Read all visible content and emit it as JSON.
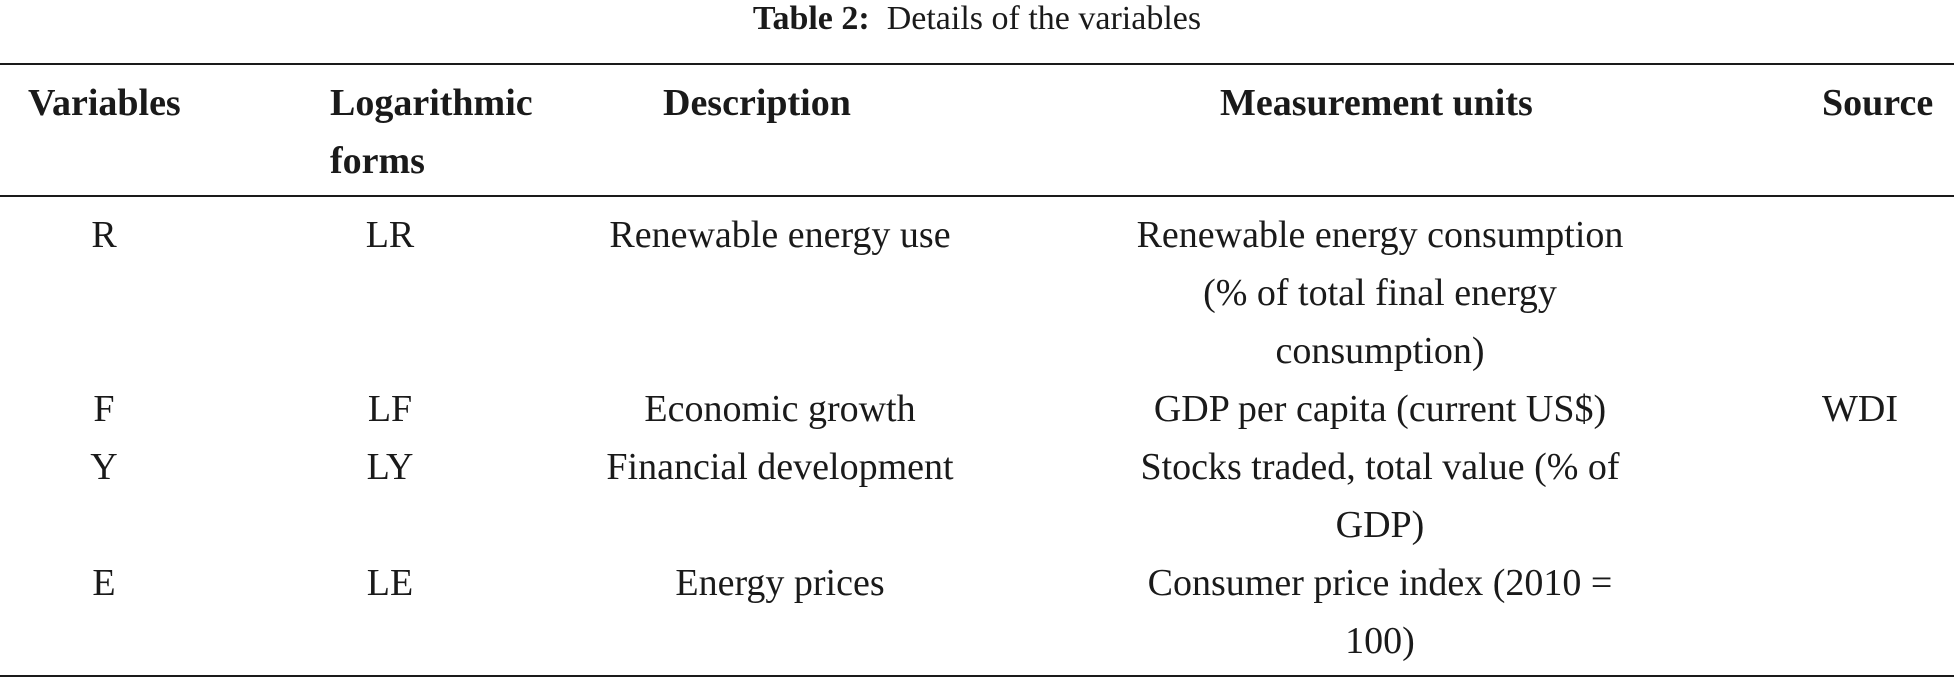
{
  "caption": {
    "label": "Table 2:",
    "title": "Details of the variables"
  },
  "columns": {
    "variables": "Variables",
    "logarithmic": "Logarithmic",
    "forms": "forms",
    "description": "Description",
    "units": "Measurement units",
    "source": "Source"
  },
  "rows": [
    {
      "var": "R",
      "log": "LR",
      "desc": "Renewable energy use",
      "units": [
        "Renewable energy consumption",
        "(% of total final energy",
        "consumption)"
      ]
    },
    {
      "var": "F",
      "log": "LF",
      "desc": "Economic growth",
      "units": [
        "GDP per capita (current US$)"
      ]
    },
    {
      "var": "Y",
      "log": "LY",
      "desc": "Financial development",
      "units": [
        "Stocks traded, total value (% of",
        "GDP)"
      ]
    },
    {
      "var": "E",
      "log": "LE",
      "desc": "Energy prices",
      "units": [
        "Consumer price index (2010 =",
        "100)"
      ]
    }
  ],
  "source": "WDI"
}
